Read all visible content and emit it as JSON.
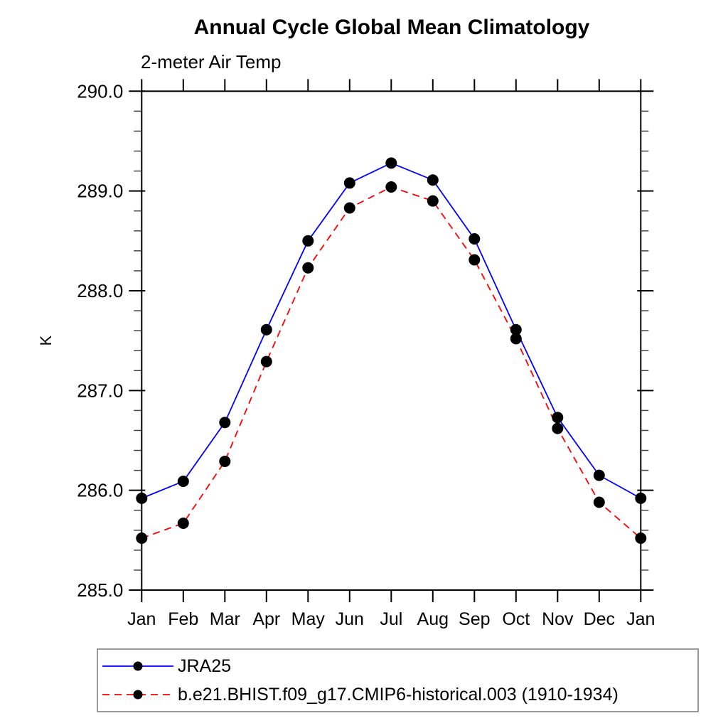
{
  "page": {
    "background": "#ffffff",
    "text_color": "#000000"
  },
  "chart": {
    "title": "Annual Cycle Global Mean Climatology",
    "subtitle": "2-meter Air Temp",
    "ylabel": "K"
  },
  "chart_data": {
    "type": "line",
    "title": "Annual Cycle Global Mean Climatology",
    "subtitle": "2-meter Air Temp",
    "xlabel": "",
    "ylabel": "K",
    "categories": [
      "Jan",
      "Feb",
      "Mar",
      "Apr",
      "May",
      "Jun",
      "Jul",
      "Aug",
      "Sep",
      "Oct",
      "Nov",
      "Dec",
      "Jan"
    ],
    "ylim": [
      285.0,
      290.0
    ],
    "ytick_labels": [
      "285.0",
      "286.0",
      "287.0",
      "288.0",
      "289.0",
      "290.0"
    ],
    "ytick_major": 1.0,
    "ytick_minor": 0.2,
    "grid": false,
    "legend_position": "bottom-left",
    "frame_color": "#000000",
    "marker_color": "#000000",
    "series": [
      {
        "name": "JRA25",
        "color": "#0000ff",
        "style": "solid",
        "marker": "circle",
        "values": [
          285.92,
          286.09,
          286.68,
          287.61,
          288.5,
          289.08,
          289.28,
          289.11,
          288.52,
          287.61,
          286.73,
          286.15,
          285.92
        ]
      },
      {
        "name": "b.e21.BHIST.f09_g17.CMIP6-historical.003 (1910-1934)",
        "color": "#ff0000",
        "style": "dashed",
        "marker": "circle",
        "values": [
          285.52,
          285.67,
          286.29,
          287.29,
          288.23,
          288.83,
          289.04,
          288.9,
          288.31,
          287.52,
          286.62,
          285.88,
          285.52
        ]
      }
    ]
  }
}
